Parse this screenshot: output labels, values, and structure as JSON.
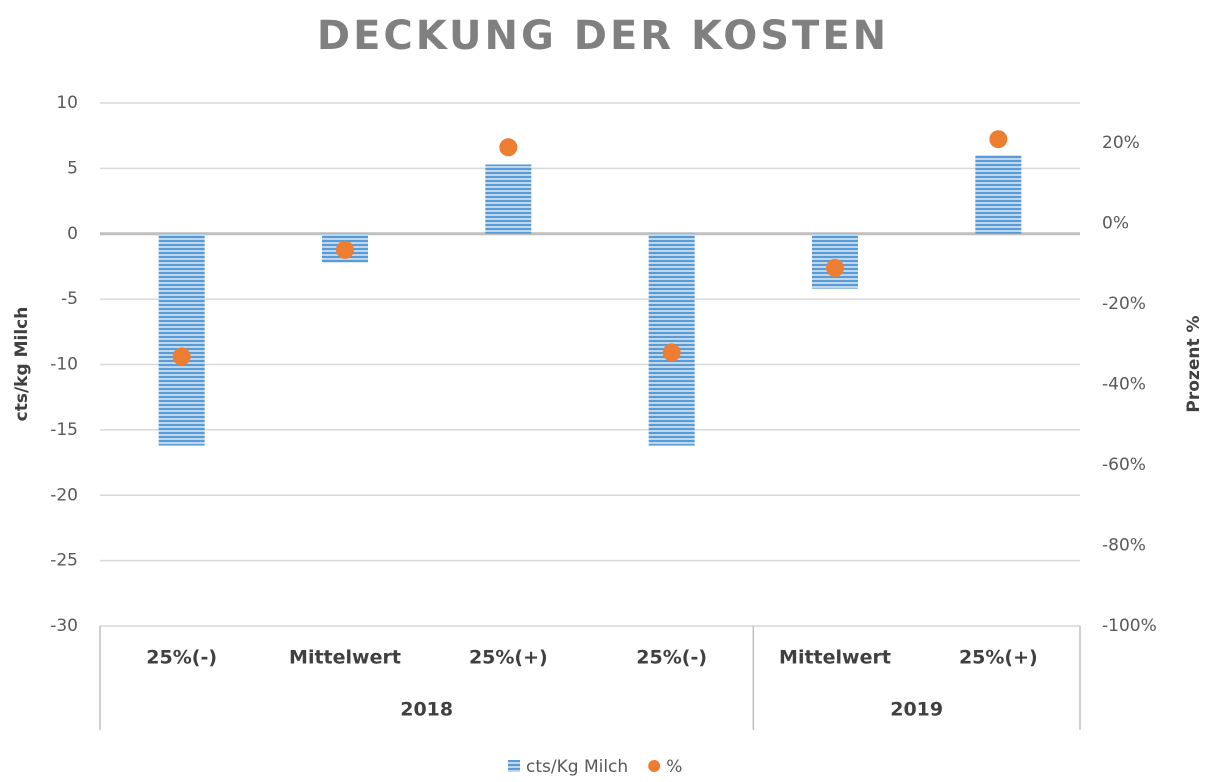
{
  "chart_data": {
    "type": "bar",
    "title": "DECKUNG DER KOSTEN",
    "categories": [
      "25%(-)",
      "Mittelwert",
      "25%(+)",
      "25%(-)",
      "Mittelwert",
      "25%(+)"
    ],
    "groups": [
      {
        "label": "2018",
        "count": 4
      },
      {
        "label": "2019",
        "count": 2
      }
    ],
    "series": [
      {
        "name": "cts/Kg Milch",
        "type": "bar",
        "color": "#5b9bd5",
        "values": [
          -16.2,
          -2.2,
          5.3,
          -16.2,
          -4.2,
          6.0
        ]
      },
      {
        "name": "%",
        "type": "scatter",
        "axis": "y2",
        "color": "#ed7d31",
        "values": [
          -33,
          -6.5,
          19,
          -32,
          -11,
          21
        ]
      }
    ],
    "y_label": "cts/kg Milch",
    "y2_label": "Prozent %",
    "ylim": [
      -30,
      10
    ],
    "yticks": [
      -30,
      -25,
      -20,
      -15,
      -10,
      -5,
      0,
      5,
      10
    ],
    "y2lim": [
      -100,
      30
    ],
    "y2ticks": [
      {
        "value": -100,
        "label": "-100%"
      },
      {
        "value": -80,
        "label": "-80%"
      },
      {
        "value": -60,
        "label": "-60%"
      },
      {
        "value": -40,
        "label": "-40%"
      },
      {
        "value": -20,
        "label": "-20%"
      },
      {
        "value": 0,
        "label": "0%"
      },
      {
        "value": 20,
        "label": "20%"
      }
    ],
    "grid": true,
    "legend": "bottom"
  }
}
